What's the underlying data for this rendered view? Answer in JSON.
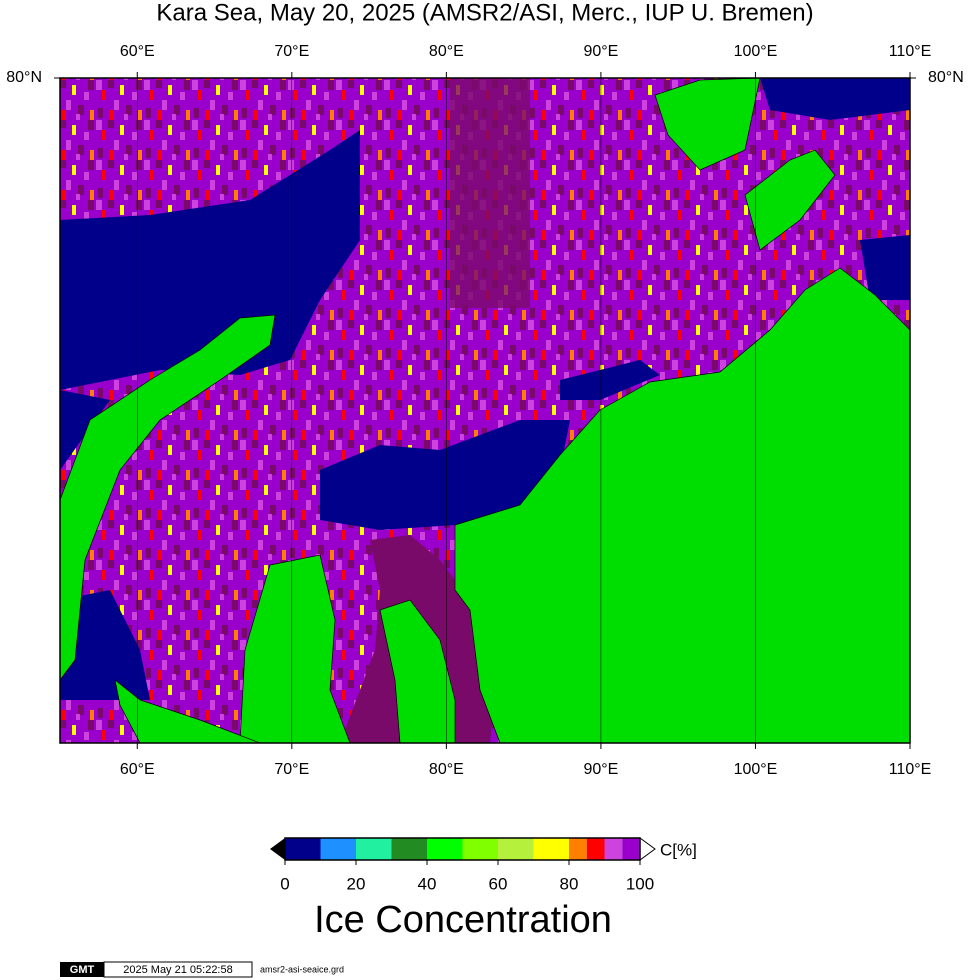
{
  "title": "Kara Sea, May 20, 2025 (AMSR2/ASI, Merc., IUP U. Bremen)",
  "map": {
    "lonlim": [
      55,
      110
    ],
    "lon_ticks": [
      {
        "value": 60,
        "label": "60°E"
      },
      {
        "value": 70,
        "label": "70°E"
      },
      {
        "value": 80,
        "label": "80°E"
      },
      {
        "value": 90,
        "label": "90°E"
      },
      {
        "value": 100,
        "label": "100°E"
      },
      {
        "value": 110,
        "label": "110°E"
      }
    ],
    "lat_ticks": [
      {
        "value": 80,
        "label": "80°N"
      }
    ]
  },
  "colorbar": {
    "unit_label": "C[%]",
    "range": [
      0,
      100
    ],
    "ticks": [
      0,
      20,
      40,
      60,
      80,
      100
    ],
    "bins": [
      0,
      10,
      20,
      30,
      40,
      50,
      60,
      70,
      80,
      85,
      90,
      95,
      100
    ],
    "colors": [
      "#00008b",
      "#1e90ff",
      "#20f0a0",
      "#228b22",
      "#00ff00",
      "#7fff00",
      "#b4f03c",
      "#ffff00",
      "#ff8000",
      "#ff0000",
      "#cc44dd",
      "#9900cc"
    ],
    "title": "Ice Concentration"
  },
  "footer": {
    "logo": "GMT",
    "timestamp": "2025 May 21 05:22:58",
    "filename": "amsr2-asi-seaice.grd"
  }
}
